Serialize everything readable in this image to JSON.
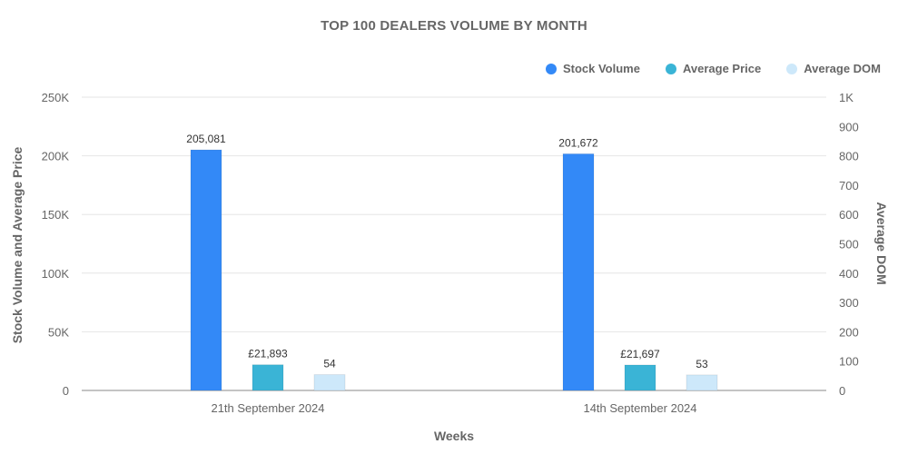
{
  "chart_data": {
    "type": "bar",
    "title": "TOP 100 DEALERS VOLUME BY MONTH",
    "xlabel": "Weeks",
    "ylabel_left": "Stock Volume and Average Price",
    "ylabel_right": "Average DOM",
    "categories": [
      "21th September 2024",
      "14th September 2024"
    ],
    "ylim_left": [
      0,
      250000
    ],
    "yticks_left": [
      "0",
      "50K",
      "100K",
      "150K",
      "200K",
      "250K"
    ],
    "ylim_right": [
      0,
      1000
    ],
    "yticks_right": [
      "0",
      "100",
      "200",
      "300",
      "400",
      "500",
      "600",
      "700",
      "800",
      "900",
      "1K"
    ],
    "grid": true,
    "legend_position": "top-right",
    "series": [
      {
        "name": "Stock Volume",
        "axis": "left",
        "color": "#3389f7",
        "values": [
          205081,
          201672
        ],
        "labels": [
          "205,081",
          "201,672"
        ]
      },
      {
        "name": "Average Price",
        "axis": "left",
        "color": "#3ab4d6",
        "values": [
          21893,
          21697
        ],
        "labels": [
          "£21,893",
          "£21,697"
        ]
      },
      {
        "name": "Average DOM",
        "axis": "right",
        "color": "#cde8fa",
        "values": [
          54,
          53
        ],
        "labels": [
          "54",
          "53"
        ]
      }
    ]
  }
}
